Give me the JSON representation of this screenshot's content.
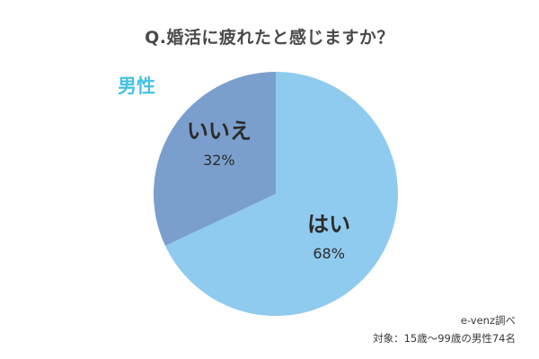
{
  "title": "Q.婚活に疲れたと感じますか？",
  "segment": "男性",
  "source_line": "e-venz調べ",
  "respondents": "対象：15歳〜99歳の男性74名",
  "colors": {
    "accent": "#45c1e6",
    "title_text": "#4a4a4a",
    "label_text": "#2b2b2b"
  },
  "chart_data": {
    "type": "pie",
    "title": "Q.婚活に疲れたと感じますか？",
    "categories": [
      "はい",
      "いいえ"
    ],
    "values": [
      68,
      32
    ],
    "value_labels": [
      "68%",
      "32%"
    ],
    "colors": [
      "#8fcbee",
      "#7b9fcd"
    ],
    "start_angle_deg": 0,
    "direction": "clockwise"
  }
}
